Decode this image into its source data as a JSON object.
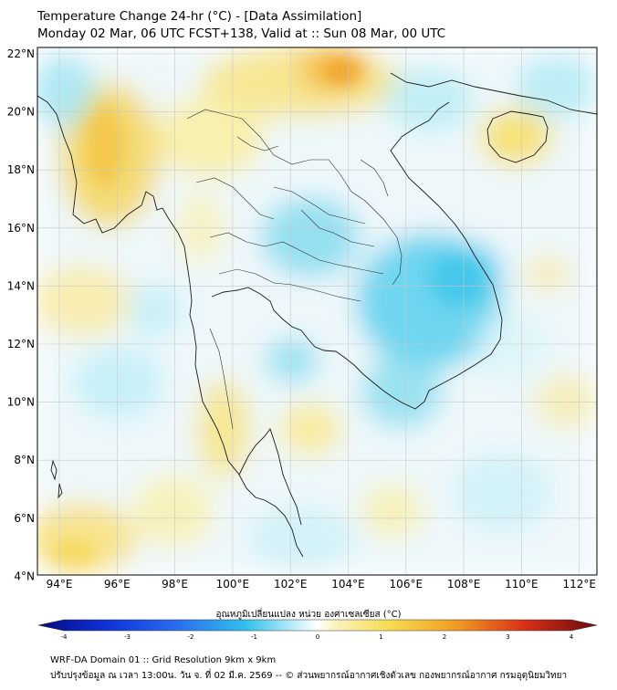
{
  "title_line1": "Temperature Change 24-hr (°C) - [Data Assimilation]",
  "title_line2": "Monday 02 Mar, 06 UTC FCST+138, Valid at :: Sun 08 Mar, 00 UTC",
  "lat_labels": [
    "22°N",
    "20°N",
    "18°N",
    "16°N",
    "14°N",
    "12°N",
    "10°N",
    "8°N",
    "6°N",
    "4°N"
  ],
  "lon_labels": [
    "94°E",
    "96°E",
    "98°E",
    "100°E",
    "102°E",
    "104°E",
    "106°E",
    "108°E",
    "110°E",
    "112°E"
  ],
  "colorbar": {
    "title": "อุณหภูมิเปลี่ยนแปลง หน่วย องศาเซลเซียส (°C)",
    "ticks": [
      "-4",
      "-3",
      "-2",
      "-1",
      "0",
      "1",
      "2",
      "3",
      "4"
    ],
    "range": [
      -4,
      4
    ]
  },
  "footer_line1": "WRF-DA Domain 01 :: Grid Resolution 9km x 9km",
  "footer_line2": "ปรับปรุงข้อมูล ณ เวลา 13:00น. วัน จ. ที่ 02 มี.ค. 2569 -- © ส่วนพยากรณ์อากาศเชิงตัวเลข กองพยากรณ์อากาศ กรมอุตุนิยมวิทยา",
  "colors": {
    "warm": "#f5d63d",
    "warm_strong": "#f0a01e",
    "cool": "#7fe0f0",
    "cool_strong": "#40c8ec",
    "coast": "#1a1a1a",
    "grid": "#c8c8c8"
  }
}
